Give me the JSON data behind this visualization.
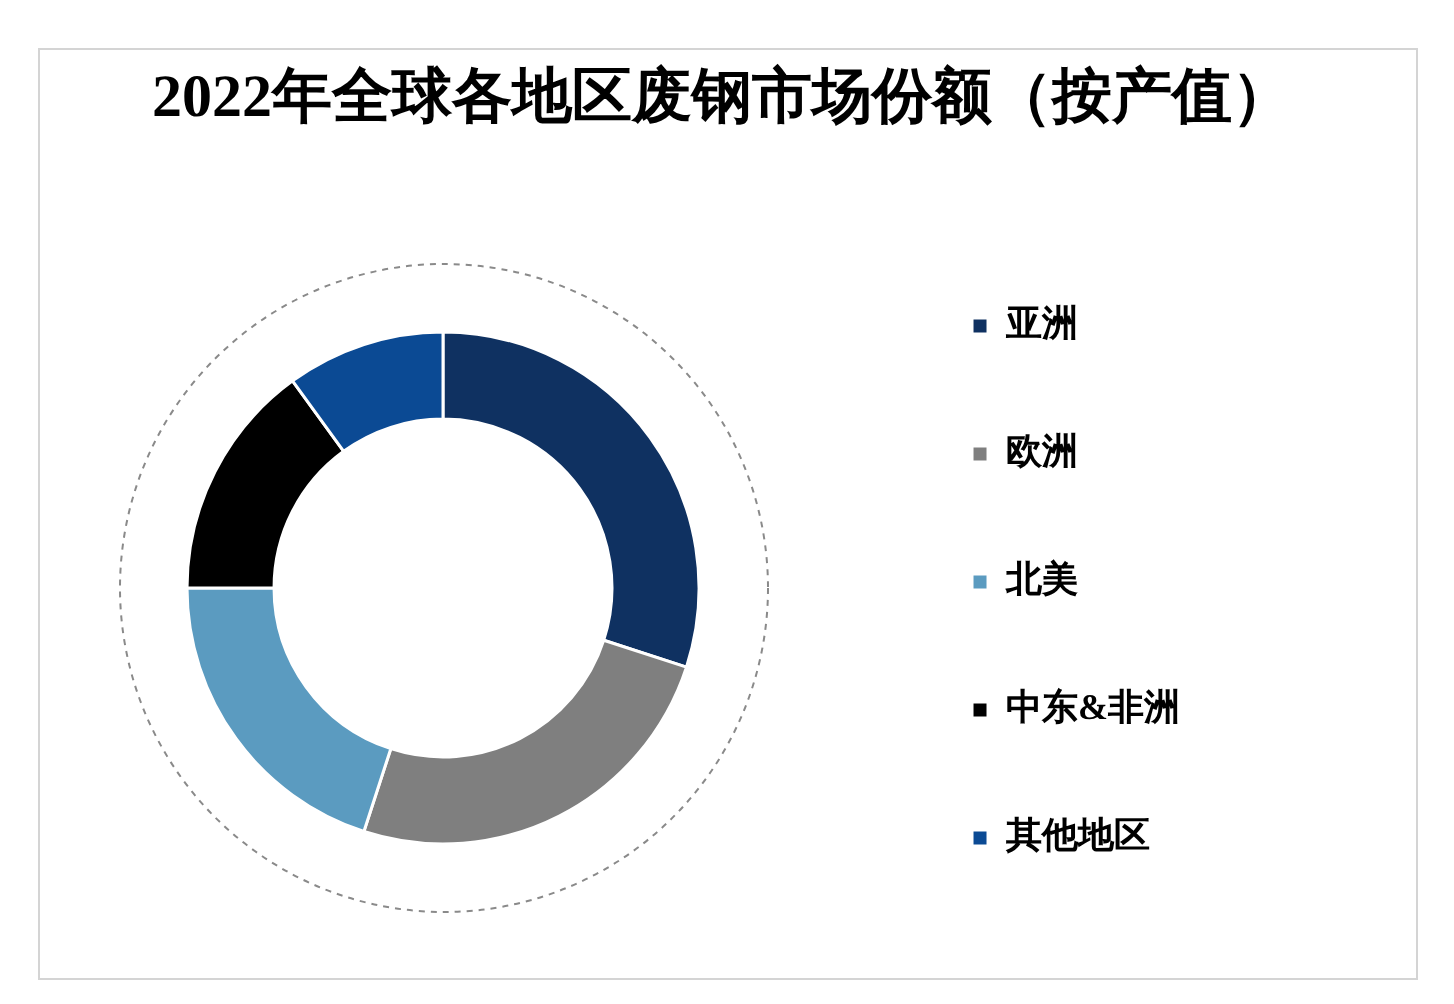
{
  "chart_data": {
    "type": "donut",
    "title": "2022年全球各地区废钢市场份额（按产值）",
    "categories": [
      "亚洲",
      "欧洲",
      "北美",
      "中东&非洲",
      "其他地区"
    ],
    "values": [
      30,
      25,
      20,
      15,
      10
    ],
    "colors": [
      "#0f3161",
      "#7f7f7f",
      "#5b9bc0",
      "#000000",
      "#0b4a94"
    ],
    "legend": "right"
  }
}
